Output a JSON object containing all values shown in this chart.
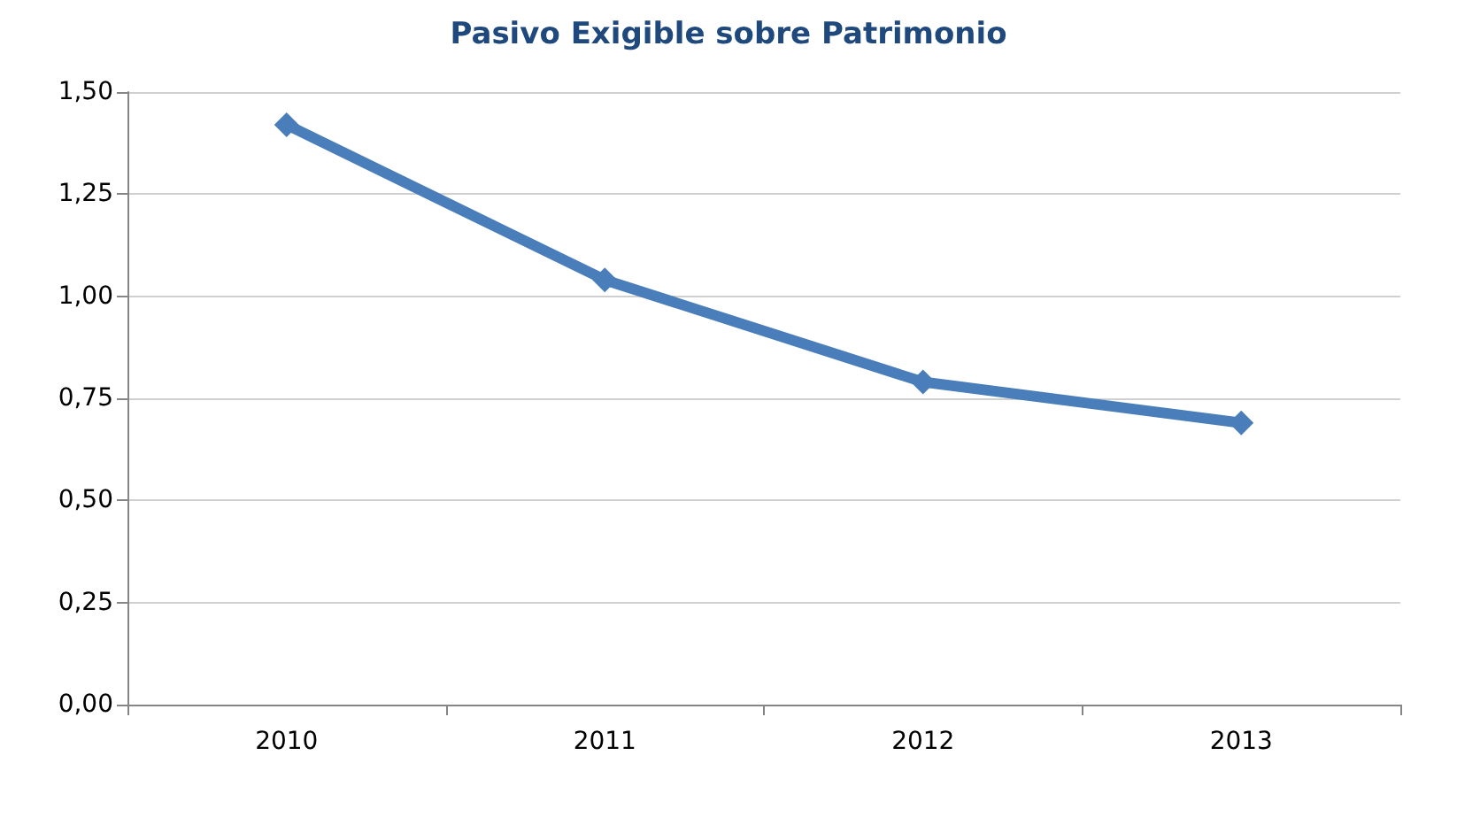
{
  "chart_data": {
    "type": "line",
    "title": "Pasivo Exigible sobre Patrimonio",
    "categories": [
      "2010",
      "2011",
      "2012",
      "2013"
    ],
    "series": [
      {
        "color": "#4a7ebb",
        "values": [
          1.42,
          1.04,
          0.79,
          0.69
        ]
      }
    ],
    "ylim": [
      0,
      1.5
    ],
    "yticks": [
      {
        "value": 0,
        "label": "0,00"
      },
      {
        "value": 0.25,
        "label": "0,25"
      },
      {
        "value": 0.5,
        "label": "0,50"
      },
      {
        "value": 0.75,
        "label": "0,75"
      },
      {
        "value": 1,
        "label": "1,00"
      },
      {
        "value": 1.25,
        "label": "1,25"
      },
      {
        "value": 1.5,
        "label": "1,50"
      }
    ],
    "grid": "y",
    "marker": "diamond",
    "line_style": "solid"
  }
}
